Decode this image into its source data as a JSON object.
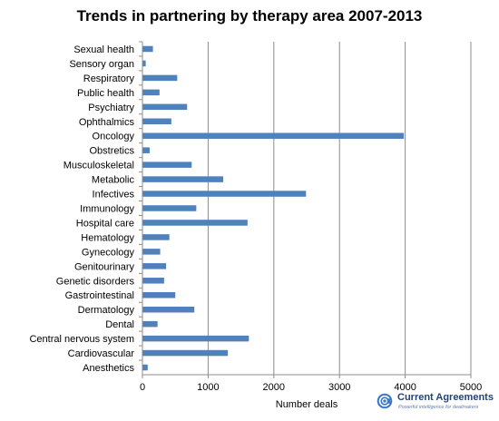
{
  "chart_data": {
    "type": "bar",
    "orientation": "horizontal",
    "title": "Trends in partnering by therapy area 2007-2013",
    "xlabel": "Number deals",
    "ylabel": "",
    "xlim": [
      0,
      5000
    ],
    "xticks": [
      0,
      1000,
      2000,
      3000,
      4000,
      5000
    ],
    "grid": "vertical",
    "legend": "none",
    "bar_color": "#4f81bd",
    "categories": [
      "Sexual health",
      "Sensory organ",
      "Respiratory",
      "Public health",
      "Psychiatry",
      "Ophthalmics",
      "Oncology",
      "Obstretics",
      "Musculoskeletal",
      "Metabolic",
      "Infectives",
      "Immunology",
      "Hospital care",
      "Hematology",
      "Gynecology",
      "Genitourinary",
      "Genetic disorders",
      "Gastrointestinal",
      "Dermatology",
      "Dental",
      "Central nervous system",
      "Cardiovascular",
      "Anesthetics"
    ],
    "values": [
      160,
      50,
      530,
      260,
      680,
      440,
      3980,
      110,
      750,
      1230,
      2490,
      820,
      1600,
      410,
      270,
      360,
      330,
      500,
      790,
      230,
      1620,
      1300,
      80
    ]
  },
  "brand": {
    "name": "Current Agreements",
    "tagline": "Powerful intelligence for dealmakers",
    "color": "#23427a"
  }
}
